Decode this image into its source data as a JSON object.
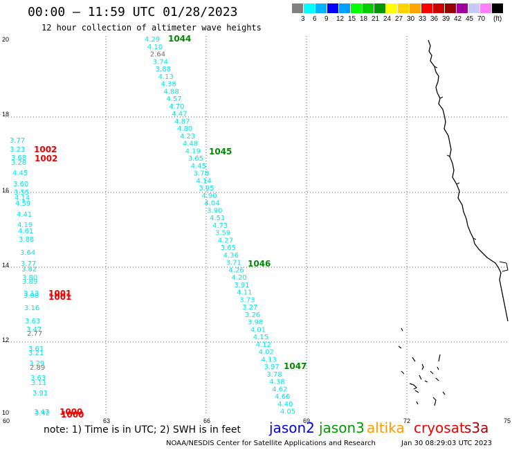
{
  "header": {
    "title": "00:00 – 11:59 UTC 01/28/2023",
    "subtitle": "12 hour collection of altimeter wave heights"
  },
  "colorbar": {
    "colors": [
      "#808080",
      "#00ffff",
      "#00b4ff",
      "#0000ff",
      "#00a0ff",
      "#00ff00",
      "#00cc00",
      "#009600",
      "#ffff00",
      "#ffd200",
      "#ffa500",
      "#ff0000",
      "#c80000",
      "#960000",
      "#a000a0",
      "#c8c8ff",
      "#ff80ff",
      "#000000"
    ],
    "labels": [
      "3",
      "6",
      "9",
      "12",
      "15",
      "18",
      "21",
      "24",
      "27",
      "30",
      "33",
      "36",
      "39",
      "42",
      "45",
      "70",
      "(ft)"
    ]
  },
  "axes": {
    "y_labels": [
      "20",
      "18",
      "16",
      "14",
      "12",
      "10"
    ],
    "x_labels": [
      "60",
      "63",
      "66",
      "69",
      "72",
      "75"
    ]
  },
  "track_colors": {
    "cyan": "#00e5e5",
    "gray": "#707070",
    "green": "#008800",
    "red": "#ee0000"
  },
  "tracks": {
    "track_a": [
      "4.29",
      "4.10",
      "2.64",
      "3.74",
      "3.88",
      "4.13",
      "4.38",
      "4.88",
      "4.57",
      "4.70",
      "4.47",
      "4.87",
      "4.80",
      "4.23",
      "4.48",
      "4.19",
      "3.65",
      "4.45",
      "3.78",
      "4.14",
      "3.95",
      "4.90",
      "4.04",
      "3.90",
      "4.51",
      "4.73",
      "3.59",
      "4.27",
      "3.65",
      "4.36",
      "3.71",
      "4.26",
      "4.20",
      "3.91",
      "4.11",
      "3.73",
      "3.27",
      "3.26",
      "3.98",
      "4.01",
      "4.15",
      "4.12",
      "4.02",
      "4.13",
      "3.97",
      "3.78",
      "4.38",
      "4.62",
      "4.66",
      "4.40",
      "4.05"
    ],
    "track_b": [
      "3.77",
      "3.23",
      "3.68",
      "3.28",
      "4.45",
      "3.60",
      "3.55",
      "4.14",
      "4.59",
      "4.41",
      "4.19",
      "4.61",
      "3.88",
      "3.64",
      "3.77",
      "3.82",
      "3.80",
      "3.89",
      "3.13",
      "3.08",
      "3.16",
      "3.63",
      "3.47",
      "2.77",
      "3.61",
      "3.21",
      "3.29",
      "2.89",
      "3.63",
      "3.11",
      "3.91",
      "3.47",
      "3.42"
    ]
  },
  "pressure_labels": {
    "p1044": "1044",
    "p1045": "1045",
    "p1046": "1046",
    "p1047": "1047",
    "p1002a": "1002",
    "p1002b": "1002",
    "p1001a": "1001",
    "p1001b": "1001",
    "p1000a": "1000",
    "p1000b": "1000"
  },
  "footer": {
    "note": "note: 1) Time is in UTC; 2) SWH is in feet",
    "missions": [
      {
        "name": "jason2",
        "color": "#0000ee"
      },
      {
        "name": "jason3",
        "color": "#009900"
      },
      {
        "name": "altika",
        "color": "#ff9900"
      },
      {
        "name": "cryosat",
        "color": "#ee0000"
      },
      {
        "name": "s3a",
        "color": "#aa0000"
      }
    ],
    "credit": "NOAA/NESDIS Center for Satellite Applications and Research",
    "timestamp": "Jan 30 08:29:03 UTC 2023"
  }
}
